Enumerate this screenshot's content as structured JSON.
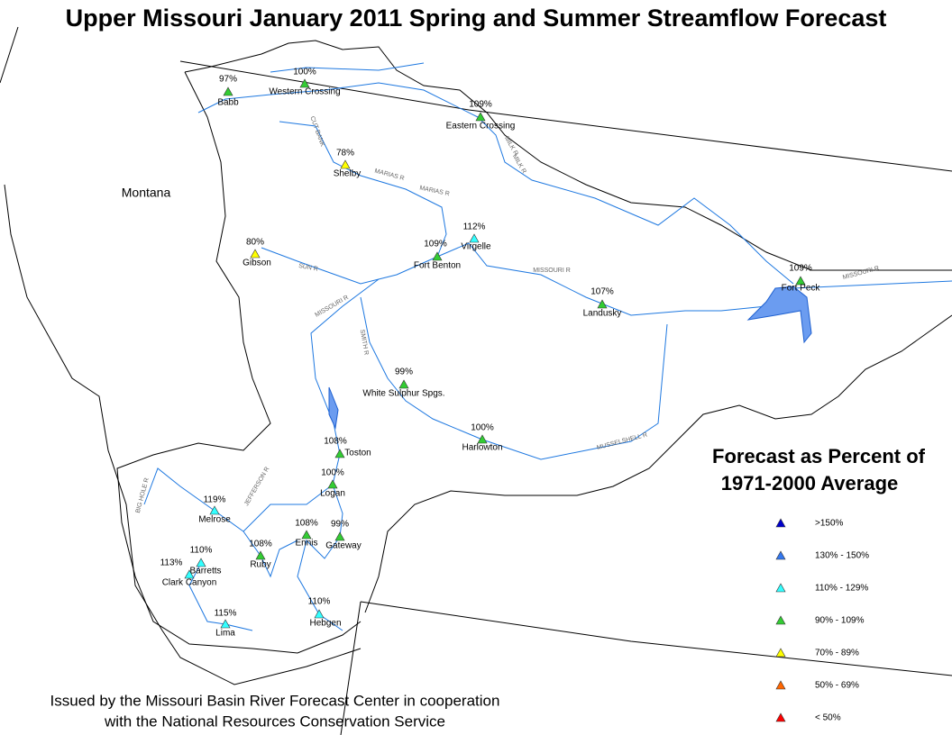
{
  "title": "Upper Missouri January 2011 Spring and Summer Streamflow Forecast",
  "region_label": "Montana",
  "stations": [
    {
      "name": "Babb",
      "percent": "97%",
      "color": "#33cc33"
    },
    {
      "name": "Western Crossing",
      "percent": "100%",
      "color": "#33cc33"
    },
    {
      "name": "Eastern Crossing",
      "percent": "109%",
      "color": "#33cc33"
    },
    {
      "name": "Shelby",
      "percent": "78%",
      "color": "#ffff00"
    },
    {
      "name": "Gibson",
      "percent": "80%",
      "color": "#ffff00"
    },
    {
      "name": "Virgelle",
      "percent": "112%",
      "color": "#33ffff"
    },
    {
      "name": "Fort Benton",
      "percent": "109%",
      "color": "#33cc33"
    },
    {
      "name": "Landusky",
      "percent": "107%",
      "color": "#33cc33"
    },
    {
      "name": "Fort Peck",
      "percent": "109%",
      "color": "#33cc33"
    },
    {
      "name": "White Sulphur Spgs.",
      "percent": "99%",
      "color": "#33cc33"
    },
    {
      "name": "Harlowton",
      "percent": "100%",
      "color": "#33cc33"
    },
    {
      "name": "Toston",
      "percent": "108%",
      "color": "#33cc33"
    },
    {
      "name": "Logan",
      "percent": "100%",
      "color": "#33cc33"
    },
    {
      "name": "Melrose",
      "percent": "119%",
      "color": "#33ffff"
    },
    {
      "name": "Ennis",
      "percent": "108%",
      "color": "#33cc33"
    },
    {
      "name": "Gateway",
      "percent": "99%",
      "color": "#33cc33"
    },
    {
      "name": "Ruby",
      "percent": "108%",
      "color": "#33cc33"
    },
    {
      "name": "Barretts",
      "percent": "110%",
      "color": "#33ffff"
    },
    {
      "name": "Clark Canyon",
      "percent": "113%",
      "color": "#33ffff"
    },
    {
      "name": "Lima",
      "percent": "115%",
      "color": "#33ffff"
    },
    {
      "name": "Hebgen",
      "percent": "110%",
      "color": "#33ffff"
    }
  ],
  "rivers": [
    "MISSOURI R",
    "MARIAS R",
    "MARIAS R",
    "MILK R",
    "MILK R",
    "CUT BANK",
    "SUN R",
    "MISSOURI R",
    "SMITH R",
    "MUSSELSHELL R",
    "MISSOURI R",
    "JEFFERSON R",
    "BIG HOLE R"
  ],
  "legend": {
    "title": [
      "Forecast as Percent of",
      "1971-2000 Average"
    ],
    "items": [
      {
        "label": ">150%",
        "color": "#0000cc"
      },
      {
        "label": "130% - 150%",
        "color": "#3377ee"
      },
      {
        "label": "110% - 129%",
        "color": "#33ffff"
      },
      {
        "label": "90% - 109%",
        "color": "#33cc33"
      },
      {
        "label": "70% - 89%",
        "color": "#ffff00"
      },
      {
        "label": "50% - 69%",
        "color": "#ff6600"
      },
      {
        "label": "< 50%",
        "color": "#ff0000"
      }
    ]
  },
  "footer": [
    "Issued by the Missouri Basin River Forecast Center in cooperation",
    "with the National Resources Conservation Service"
  ]
}
